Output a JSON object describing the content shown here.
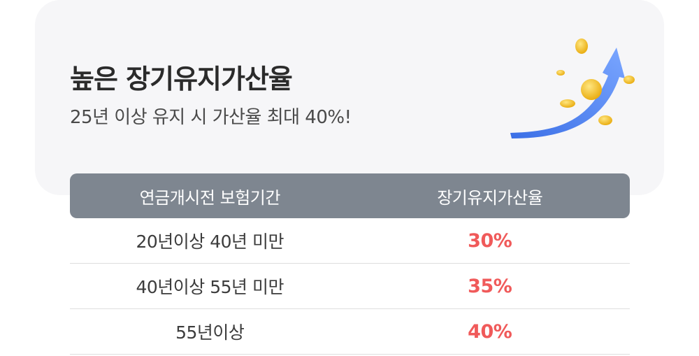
{
  "card": {
    "title": "높은 장기유지가산율",
    "subtitle": "25년 이상 유지 시 가산율 최대 40%!"
  },
  "illustration": {
    "icon": "rising-arrow-coins-icon",
    "arrow_color": "#4a7cf0",
    "coin_color": "#f5c21b"
  },
  "table": {
    "headers": [
      "연금개시전 보험기간",
      "장기유지가산율"
    ],
    "rows": [
      [
        "20년이상 40년 미만",
        "30%"
      ],
      [
        "40년이상 55년 미만",
        "35%"
      ],
      [
        "55년이상",
        "40%"
      ]
    ],
    "header_bg": "#7e8690",
    "rate_color": "#f05a5a"
  }
}
